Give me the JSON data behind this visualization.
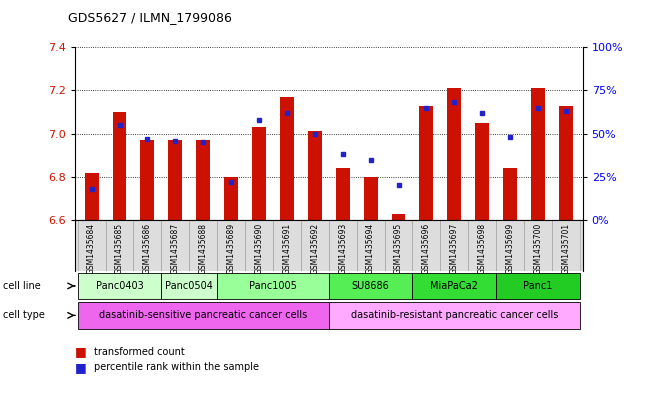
{
  "title": "GDS5627 / ILMN_1799086",
  "samples": [
    "GSM1435684",
    "GSM1435685",
    "GSM1435686",
    "GSM1435687",
    "GSM1435688",
    "GSM1435689",
    "GSM1435690",
    "GSM1435691",
    "GSM1435692",
    "GSM1435693",
    "GSM1435694",
    "GSM1435695",
    "GSM1435696",
    "GSM1435697",
    "GSM1435698",
    "GSM1435699",
    "GSM1435700",
    "GSM1435701"
  ],
  "bar_values": [
    6.82,
    7.1,
    6.97,
    6.97,
    6.97,
    6.8,
    7.03,
    7.17,
    7.01,
    6.84,
    6.8,
    6.63,
    7.13,
    7.21,
    7.05,
    6.84,
    7.21,
    7.13
  ],
  "percentile_values": [
    18,
    55,
    47,
    46,
    45,
    22,
    58,
    62,
    50,
    38,
    35,
    20,
    65,
    68,
    62,
    48,
    65,
    63
  ],
  "y_min": 6.6,
  "y_max": 7.4,
  "y_ticks": [
    6.6,
    6.8,
    7.0,
    7.2,
    7.4
  ],
  "bar_color": "#cc1100",
  "dot_color": "#2222cc",
  "cell_line_groups": [
    {
      "label": "Panc0403",
      "cols": [
        0,
        1,
        2
      ],
      "color": "#ccffcc"
    },
    {
      "label": "Panc0504",
      "cols": [
        3,
        4
      ],
      "color": "#ccffcc"
    },
    {
      "label": "Panc1005",
      "cols": [
        5,
        6,
        7,
        8
      ],
      "color": "#99ff99"
    },
    {
      "label": "SU8686",
      "cols": [
        9,
        10,
        11
      ],
      "color": "#55ee55"
    },
    {
      "label": "MiaPaCa2",
      "cols": [
        12,
        13,
        14
      ],
      "color": "#33dd33"
    },
    {
      "label": "Panc1",
      "cols": [
        15,
        16,
        17
      ],
      "color": "#22cc22"
    }
  ],
  "cell_type_groups": [
    {
      "label": "dasatinib-sensitive pancreatic cancer cells",
      "start": 0,
      "end": 8,
      "color": "#ee66ee"
    },
    {
      "label": "dasatinib-resistant pancreatic cancer cells",
      "start": 9,
      "end": 17,
      "color": "#ffaaff"
    }
  ],
  "right_y_ticks": [
    0,
    25,
    50,
    75,
    100
  ],
  "right_y_labels": [
    "0%",
    "25%",
    "50%",
    "75%",
    "100%"
  ]
}
